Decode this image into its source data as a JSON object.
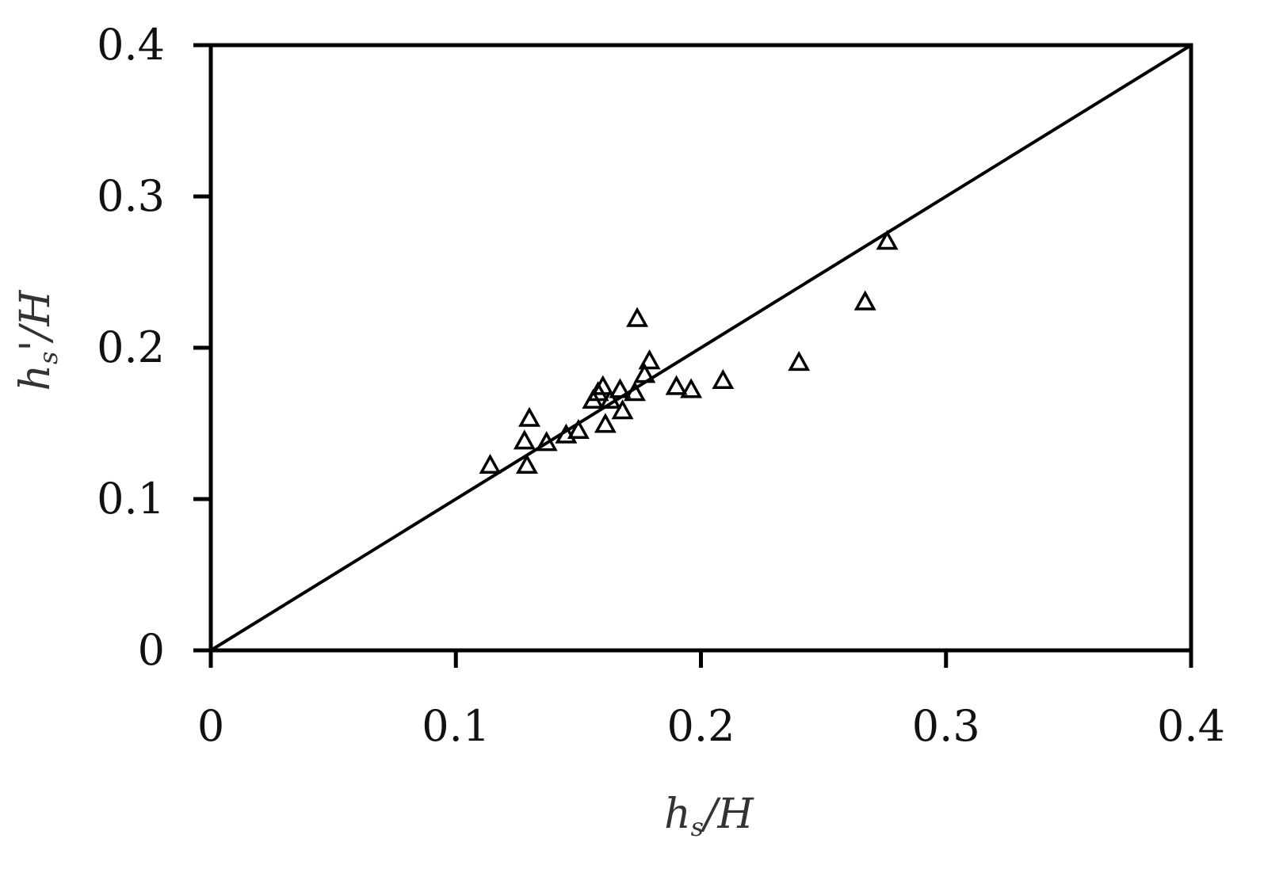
{
  "chart_data": {
    "type": "scatter",
    "title": "",
    "xlabel": "hs/H",
    "ylabel": "hs'/H",
    "xlabel_parts": {
      "main": "h",
      "sub": "s",
      "rest": "/H"
    },
    "ylabel_parts": {
      "main": "h",
      "sub": "s",
      "rest": "'/H"
    },
    "xlim": [
      0,
      0.4
    ],
    "ylim": [
      0,
      0.4
    ],
    "x_ticks": [
      0,
      0.1,
      0.2,
      0.3,
      0.4
    ],
    "y_ticks": [
      0,
      0.1,
      0.2,
      0.3,
      0.4
    ],
    "x_tick_labels": [
      "0",
      "0.1",
      "0.2",
      "0.3",
      "0.4"
    ],
    "y_tick_labels": [
      "0",
      "0.1",
      "0.2",
      "0.3",
      "0.4"
    ],
    "grid": false,
    "reference_line": {
      "from": [
        0,
        0
      ],
      "to": [
        0.4,
        0.4
      ]
    },
    "series": [
      {
        "marker": "triangle-open",
        "color": "#000000",
        "points": [
          [
            0.114,
            0.122
          ],
          [
            0.128,
            0.138
          ],
          [
            0.129,
            0.122
          ],
          [
            0.13,
            0.153
          ],
          [
            0.137,
            0.137
          ],
          [
            0.145,
            0.142
          ],
          [
            0.15,
            0.145
          ],
          [
            0.156,
            0.165
          ],
          [
            0.158,
            0.17
          ],
          [
            0.16,
            0.174
          ],
          [
            0.161,
            0.149
          ],
          [
            0.163,
            0.165
          ],
          [
            0.167,
            0.172
          ],
          [
            0.168,
            0.158
          ],
          [
            0.173,
            0.17
          ],
          [
            0.174,
            0.219
          ],
          [
            0.177,
            0.182
          ],
          [
            0.179,
            0.191
          ],
          [
            0.19,
            0.174
          ],
          [
            0.196,
            0.172
          ],
          [
            0.209,
            0.178
          ],
          [
            0.24,
            0.19
          ],
          [
            0.267,
            0.23
          ],
          [
            0.276,
            0.27
          ]
        ]
      }
    ]
  }
}
